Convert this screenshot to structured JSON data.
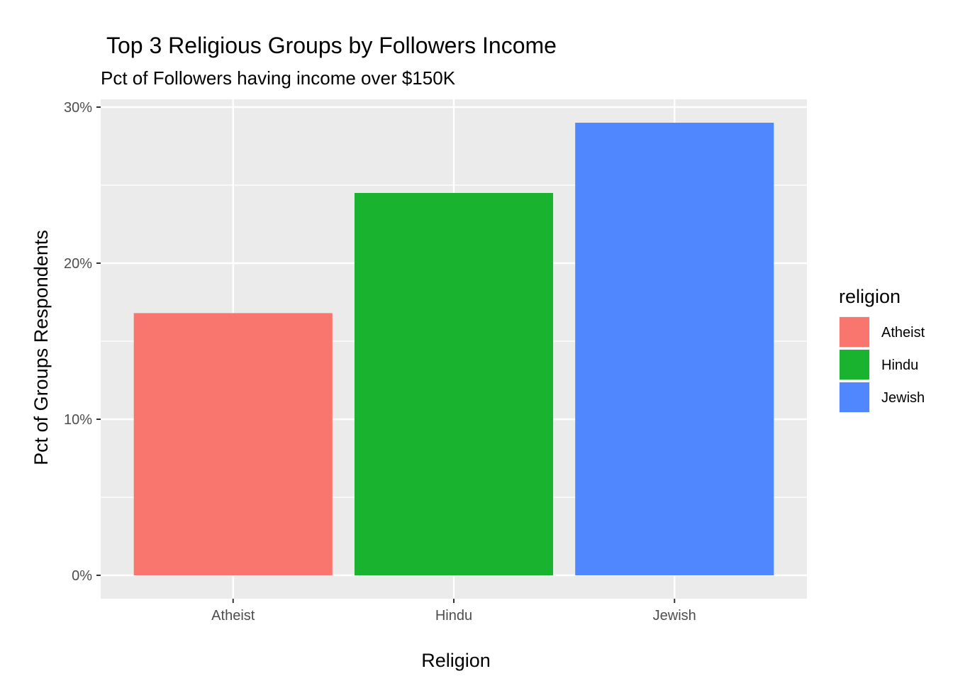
{
  "chart_data": {
    "type": "bar",
    "title": "Top 3 Religious Groups by Followers Income",
    "subtitle": "Pct of Followers having income over $150K",
    "xlabel": "Religion",
    "ylabel": "Pct of Groups Respondents",
    "categories": [
      "Atheist",
      "Hindu",
      "Jewish"
    ],
    "values": [
      16.8,
      24.5,
      29.0
    ],
    "colors": [
      "#F8766D",
      "#19B330",
      "#5087FF"
    ],
    "ylim": [
      -1.5,
      30.5
    ],
    "yticks": [
      0,
      10,
      20,
      30
    ],
    "ytick_labels": [
      "0%",
      "10%",
      "20%",
      "30%"
    ],
    "grid": true,
    "legend": {
      "title": "religion",
      "position": "right",
      "entries": [
        "Atheist",
        "Hindu",
        "Jewish"
      ]
    }
  }
}
